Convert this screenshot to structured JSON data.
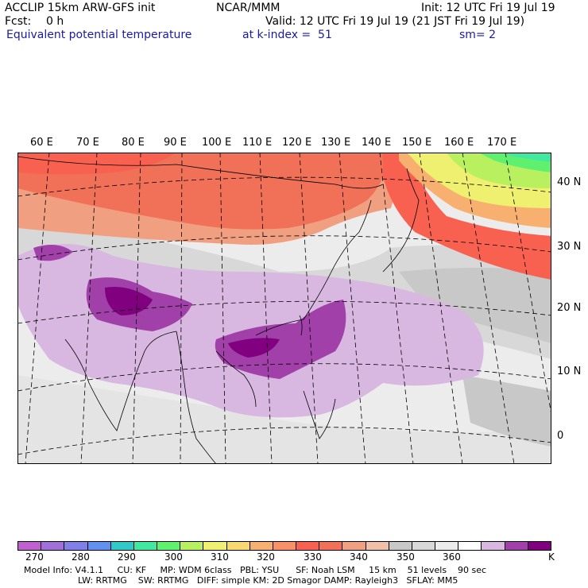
{
  "header": {
    "model": "ACCLIP 15km ARW-GFS init",
    "org": "NCAR/MMM",
    "init": "Init: 12 UTC Fri 19 Jul 19",
    "fcst_label": "Fcst:",
    "fcst_value": "0 h",
    "valid": "Valid: 12 UTC Fri 19 Jul 19 (21 JST Fri 19 Jul 19)",
    "field": "Equivalent potential temperature",
    "level": "at k-index =  51",
    "smooth": "sm= 2"
  },
  "map": {
    "lon_labels": [
      "60 E",
      "70 E",
      "80 E",
      "90 E",
      "100 E",
      "110 E",
      "120 E",
      "130 E",
      "140 E",
      "150 E",
      "160 E",
      "170 E"
    ],
    "lat_labels": [
      "40 N",
      "30 N",
      "20 N",
      "10 N",
      "0"
    ]
  },
  "colorbar": {
    "unit": "K",
    "tick_labels": [
      "270",
      "280",
      "290",
      "300",
      "310",
      "320",
      "330",
      "340",
      "350",
      "360"
    ],
    "colors": [
      "#c060d0",
      "#a070d8",
      "#8080e8",
      "#6090f0",
      "#30c8c8",
      "#40e8a0",
      "#60f070",
      "#b8f060",
      "#f0f070",
      "#f8d870",
      "#f8b070",
      "#f89068",
      "#f86050",
      "#f07058",
      "#f0a080",
      "#f0c0a8",
      "#c8c8c8",
      "#d8d8d8",
      "#ececec",
      "#ffffff",
      "#d8b8e0",
      "#a040a8",
      "#800080"
    ]
  },
  "footer": {
    "line1": "Model Info: V4.1.1     CU: KF     MP: WDM 6class   PBL: YSU      SF: Noah LSM     15 km    51 levels    90 sec",
    "line2": "LW: RRTMG    SW: RRTMG   DIFF: simple KM: 2D Smagor DAMP: Rayleigh3   SFLAY: MM5"
  }
}
